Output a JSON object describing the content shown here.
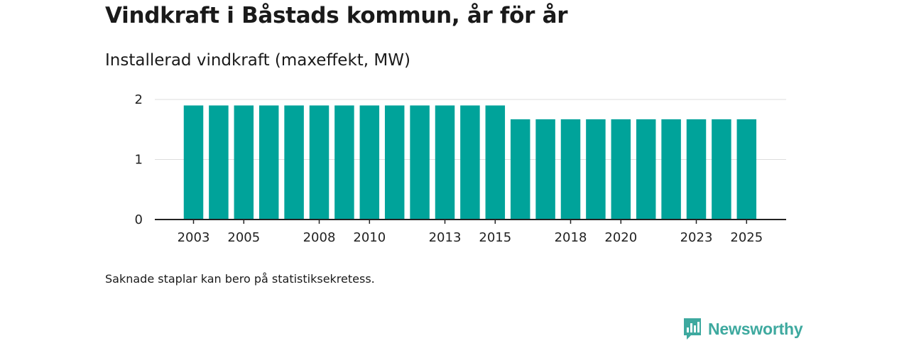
{
  "title": "Vindkraft i Båstads kommun, år för år",
  "subtitle": "Installerad vindkraft (maxeffekt, MW)",
  "footnote": "Saknade staplar kan bero på statistiksekretess.",
  "brand": {
    "name": "Newsworthy",
    "color": "#3ea99f",
    "icon": "bar-chart-speech-icon"
  },
  "colors": {
    "bar": "#00a39a",
    "grid": "#dddddd",
    "axis": "#222222"
  },
  "chart_data": {
    "type": "bar",
    "title": "Installerad vindkraft (maxeffekt, MW)",
    "xlabel": "",
    "ylabel": "",
    "ylim": [
      0,
      2
    ],
    "yticks": [
      0,
      1,
      2
    ],
    "grid": true,
    "categories": [
      "2003",
      "2004",
      "2005",
      "2006",
      "2007",
      "2008",
      "2009",
      "2010",
      "2011",
      "2012",
      "2013",
      "2014",
      "2015",
      "2016",
      "2017",
      "2018",
      "2019",
      "2020",
      "2021",
      "2022",
      "2023",
      "2024",
      "2025"
    ],
    "values": [
      1.9,
      1.9,
      1.9,
      1.9,
      1.9,
      1.9,
      1.9,
      1.9,
      1.9,
      1.9,
      1.9,
      1.9,
      1.9,
      1.67,
      1.67,
      1.67,
      1.67,
      1.67,
      1.67,
      1.67,
      1.67,
      1.67,
      1.67
    ],
    "xtick_labels": [
      "2003",
      "2005",
      "2008",
      "2010",
      "2013",
      "2015",
      "2018",
      "2020",
      "2023",
      "2025"
    ]
  }
}
